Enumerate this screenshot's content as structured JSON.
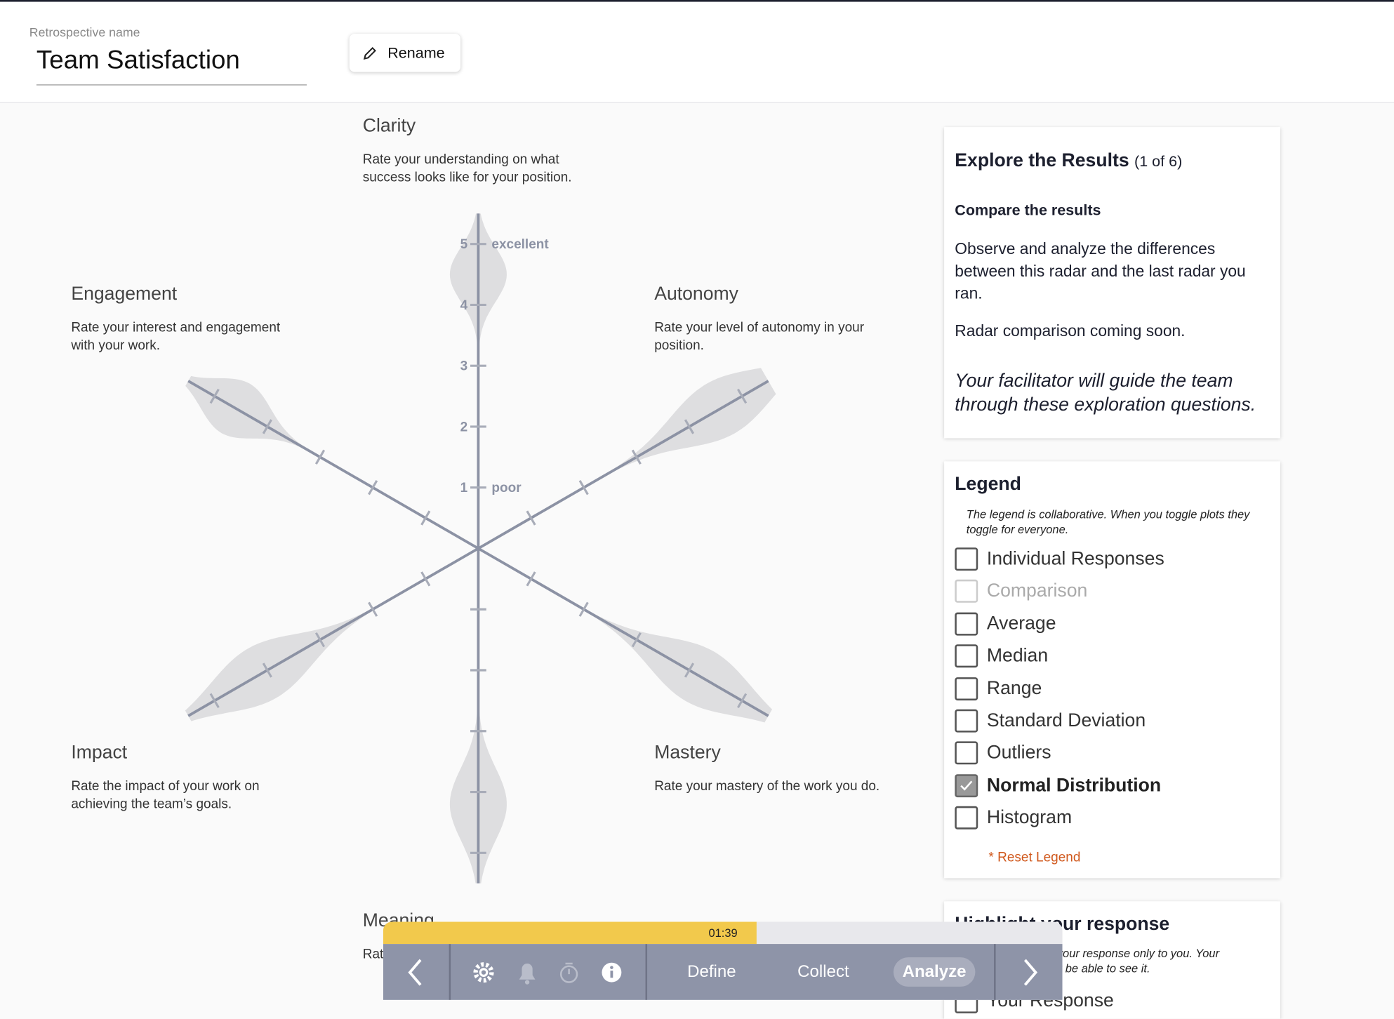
{
  "header": {
    "field_label": "Retrospective name",
    "title": "Team Satisfaction",
    "rename_button": "Rename"
  },
  "radar": {
    "ticks": [
      1,
      2,
      3,
      4,
      5
    ],
    "poor_label": "poor",
    "excellent_label": "excellent",
    "dimensions": [
      {
        "title": "Clarity",
        "description": "Rate your understanding on what success looks like for your position.",
        "mean": 4.5,
        "sd": 0.45
      },
      {
        "title": "Autonomy",
        "description": "Rate your level of autonomy in your position.",
        "mean": 4.6,
        "sd": 0.8
      },
      {
        "title": "Mastery",
        "description": "Rate your mastery of the work you do.",
        "mean": 4.2,
        "sd": 0.8
      },
      {
        "title": "Meaning",
        "description": "Rate the meaning of your work.",
        "mean": 4.2,
        "sd": 0.6
      },
      {
        "title": "Impact",
        "description": "Rate the impact of your work on achieving the team’s goals.",
        "mean": 4.1,
        "sd": 0.8
      },
      {
        "title": "Engagement",
        "description": "Rate your interest and engagement with your work.",
        "mean": 4.6,
        "sd": 0.5
      }
    ]
  },
  "explore": {
    "title": "Explore the Results",
    "step": "(1 of 6)",
    "subtitle": "Compare the results",
    "body": "Observe and analyze the differences between this radar and the last radar you ran.",
    "note": "Radar comparison coming soon.",
    "facilitator": "Your facilitator will guide the team through these exploration questions."
  },
  "legend": {
    "title": "Legend",
    "note": "The legend is collaborative. When you toggle plots they toggle for everyone.",
    "items": [
      {
        "label": "Individual Responses",
        "checked": false,
        "disabled": false
      },
      {
        "label": "Comparison",
        "checked": false,
        "disabled": true
      },
      {
        "label": "Average",
        "checked": false,
        "disabled": false
      },
      {
        "label": "Median",
        "checked": false,
        "disabled": false
      },
      {
        "label": "Range",
        "checked": false,
        "disabled": false
      },
      {
        "label": "Standard Deviation",
        "checked": false,
        "disabled": false
      },
      {
        "label": "Outliers",
        "checked": false,
        "disabled": false
      },
      {
        "label": "Normal Distribution",
        "checked": true,
        "disabled": false
      },
      {
        "label": "Histogram",
        "checked": false,
        "disabled": false
      }
    ],
    "reset": "* Reset Legend"
  },
  "highlight": {
    "title": "Highlight your response",
    "note": "This will highlight your response only to you. Your teammates will not be able to see it.",
    "option": "Your Response"
  },
  "toolbar": {
    "timer": "01:39",
    "progress": 55,
    "steps": [
      "Define",
      "Collect",
      "Analyze"
    ],
    "active_step": 2
  }
}
